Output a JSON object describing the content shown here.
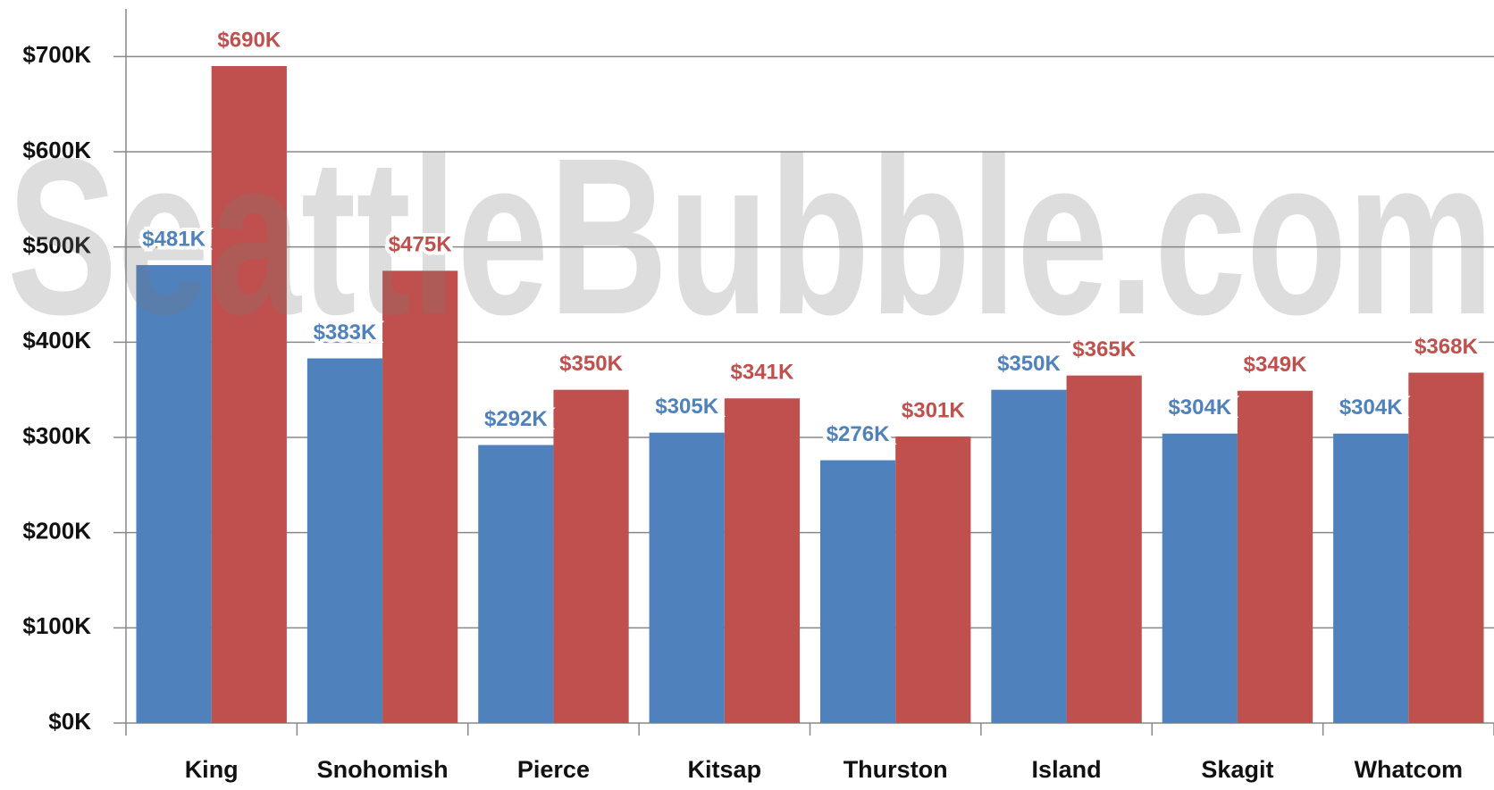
{
  "chart_data": {
    "type": "bar",
    "watermark": "SeattleBubble.com",
    "categories": [
      "King",
      "Snohomish",
      "Pierce",
      "Kitsap",
      "Thurston",
      "Island",
      "Skagit",
      "Whatcom"
    ],
    "series": [
      {
        "color": "#4f81bd",
        "values": [
          481000,
          383000,
          292000,
          305000,
          276000,
          350000,
          304000,
          304000
        ],
        "value_labels": [
          "$481K",
          "$383K",
          "$292K",
          "$305K",
          "$276K",
          "$350K",
          "$304K",
          "$304K"
        ]
      },
      {
        "color": "#c0504d",
        "values": [
          690000,
          475000,
          350000,
          341000,
          301000,
          365000,
          349000,
          368000
        ],
        "value_labels": [
          "$690K",
          "$475K",
          "$350K",
          "$341K",
          "$301K",
          "$365K",
          "$349K",
          "$368K"
        ]
      }
    ],
    "ylim": [
      0,
      750000
    ],
    "yticks": [
      {
        "value": 0,
        "label": "$0K"
      },
      {
        "value": 100000,
        "label": "$100K"
      },
      {
        "value": 200000,
        "label": "$200K"
      },
      {
        "value": 300000,
        "label": "$300K"
      },
      {
        "value": 400000,
        "label": "$400K"
      },
      {
        "value": 500000,
        "label": "$500K"
      },
      {
        "value": 600000,
        "label": "$600K"
      },
      {
        "value": 700000,
        "label": "$700K"
      }
    ],
    "grid": true
  }
}
